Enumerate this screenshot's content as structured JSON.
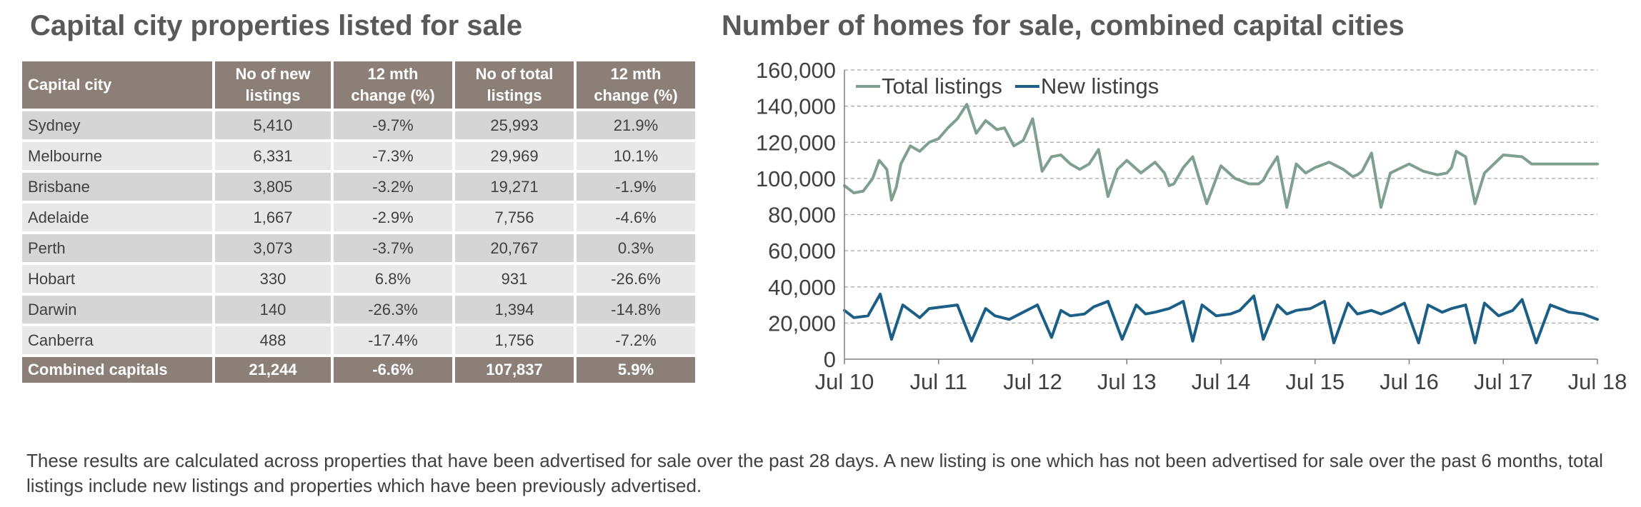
{
  "table": {
    "title": "Capital city properties listed for sale",
    "headers": [
      "Capital city",
      "No of new listings",
      "12 mth change (%)",
      "No of total listings",
      "12 mth change (%)"
    ],
    "rows": [
      [
        "Sydney",
        "5,410",
        "-9.7%",
        "25,993",
        "21.9%"
      ],
      [
        "Melbourne",
        "6,331",
        "-7.3%",
        "29,969",
        "10.1%"
      ],
      [
        "Brisbane",
        "3,805",
        "-3.2%",
        "19,271",
        "-1.9%"
      ],
      [
        "Adelaide",
        "1,667",
        "-2.9%",
        "7,756",
        "-4.6%"
      ],
      [
        "Perth",
        "3,073",
        "-3.7%",
        "20,767",
        "0.3%"
      ],
      [
        "Hobart",
        "330",
        "6.8%",
        "931",
        "-26.6%"
      ],
      [
        "Darwin",
        "140",
        "-26.3%",
        "1,394",
        "-14.8%"
      ],
      [
        "Canberra",
        "488",
        "-17.4%",
        "1,756",
        "-7.2%"
      ]
    ],
    "total": [
      "Combined capitals",
      "21,244",
      "-6.6%",
      "107,837",
      "5.9%"
    ]
  },
  "colors": {
    "header_bg": "#8b7f77",
    "row_odd": "#d6d5d5",
    "row_even": "#e9e8e8",
    "total_listings": "#7f9f8f",
    "new_listings": "#1c5f86",
    "grid": "#a6a6a6"
  },
  "chart_data": {
    "type": "line",
    "title": "Number of homes for sale, combined capital cities",
    "xlabel": "",
    "ylabel": "",
    "ylim": [
      0,
      160000
    ],
    "yticks": [
      0,
      20000,
      40000,
      60000,
      80000,
      100000,
      120000,
      140000,
      160000
    ],
    "ytick_labels": [
      "0",
      "20,000",
      "40,000",
      "60,000",
      "80,000",
      "100,000",
      "120,000",
      "140,000",
      "160,000"
    ],
    "xtick_labels": [
      "Jul 10",
      "Jul 11",
      "Jul 12",
      "Jul 13",
      "Jul 14",
      "Jul 15",
      "Jul 16",
      "Jul 17",
      "Jul 18"
    ],
    "xlim": [
      2010.5,
      2018.5
    ],
    "grid": true,
    "legend": "top-left",
    "series": [
      {
        "name": "Total listings",
        "color": "#7f9f8f",
        "x": [
          2010.5,
          2010.6,
          2010.7,
          2010.8,
          2010.87,
          2010.95,
          2011.0,
          2011.05,
          2011.1,
          2011.2,
          2011.3,
          2011.4,
          2011.5,
          2011.6,
          2011.7,
          2011.8,
          2011.9,
          2012.0,
          2012.05,
          2012.12,
          2012.2,
          2012.3,
          2012.4,
          2012.5,
          2012.6,
          2012.7,
          2012.8,
          2012.9,
          2013.0,
          2013.1,
          2013.2,
          2013.3,
          2013.4,
          2013.5,
          2013.65,
          2013.8,
          2013.9,
          2013.95,
          2014.0,
          2014.1,
          2014.2,
          2014.35,
          2014.5,
          2014.65,
          2014.8,
          2014.9,
          2014.95,
          2015.0,
          2015.1,
          2015.2,
          2015.3,
          2015.4,
          2015.5,
          2015.65,
          2015.8,
          2015.9,
          2015.95,
          2016.0,
          2016.1,
          2016.2,
          2016.3,
          2016.5,
          2016.65,
          2016.8,
          2016.9,
          2016.95,
          2017.0,
          2017.1,
          2017.2,
          2017.3,
          2017.5,
          2017.7,
          2017.8,
          2017.9,
          2017.95,
          2018.0,
          2018.1,
          2018.2,
          2018.3,
          2018.4,
          2018.5
        ],
        "y": [
          96000,
          92000,
          93000,
          100000,
          110000,
          105000,
          88000,
          95000,
          108000,
          118000,
          115000,
          120000,
          122000,
          128000,
          133000,
          141000,
          125000,
          132000,
          130000,
          127000,
          128000,
          118000,
          121000,
          133000,
          104000,
          112000,
          113000,
          108000,
          105000,
          108000,
          116000,
          90000,
          105000,
          110000,
          103000,
          109000,
          103000,
          96000,
          97000,
          106000,
          112000,
          86000,
          107000,
          100000,
          97000,
          97000,
          99000,
          104000,
          112000,
          84000,
          108000,
          103000,
          106000,
          109000,
          105000,
          101000,
          102000,
          104000,
          114000,
          84000,
          103000,
          108000,
          104000,
          102000,
          103000,
          106000,
          115000,
          112000,
          86000,
          103000,
          113000,
          112000,
          108000,
          108000,
          108000,
          108000,
          108000,
          108000,
          108000,
          108000,
          108000
        ]
      },
      {
        "name": "New listings",
        "color": "#1c5f86",
        "x": [
          2010.5,
          2010.6,
          2010.75,
          2010.88,
          2011.0,
          2011.12,
          2011.3,
          2011.4,
          2011.55,
          2011.7,
          2011.85,
          2012.0,
          2012.1,
          2012.25,
          2012.4,
          2012.55,
          2012.7,
          2012.8,
          2012.9,
          2013.05,
          2013.15,
          2013.3,
          2013.45,
          2013.6,
          2013.7,
          2013.8,
          2013.95,
          2014.1,
          2014.2,
          2014.3,
          2014.45,
          2014.6,
          2014.7,
          2014.85,
          2014.95,
          2015.1,
          2015.2,
          2015.3,
          2015.45,
          2015.6,
          2015.7,
          2015.85,
          2015.95,
          2016.1,
          2016.2,
          2016.3,
          2016.45,
          2016.6,
          2016.7,
          2016.85,
          2016.95,
          2017.1,
          2017.2,
          2017.3,
          2017.45,
          2017.6,
          2017.7,
          2017.85,
          2018.0,
          2018.2,
          2018.35,
          2018.5
        ],
        "y": [
          27000,
          23000,
          24000,
          36000,
          11000,
          30000,
          23000,
          28000,
          29000,
          30000,
          10000,
          28000,
          24000,
          22000,
          26000,
          30000,
          12000,
          27000,
          24000,
          25000,
          29000,
          32000,
          11000,
          30000,
          25000,
          26000,
          28000,
          32000,
          10000,
          30000,
          24000,
          25000,
          27000,
          35000,
          11000,
          30000,
          25000,
          27000,
          28000,
          32000,
          9000,
          31000,
          25000,
          27000,
          25000,
          27000,
          31000,
          9000,
          30000,
          26000,
          28000,
          30000,
          9000,
          31000,
          24000,
          27000,
          33000,
          9000,
          30000,
          26000,
          25000,
          22000
        ]
      }
    ]
  },
  "footnote": "These results are calculated across properties that have been advertised for sale over the past 28 days.  A new listing is one which has not been advertised for sale over the past 6 months, total listings include new listings and properties which have been previously advertised."
}
